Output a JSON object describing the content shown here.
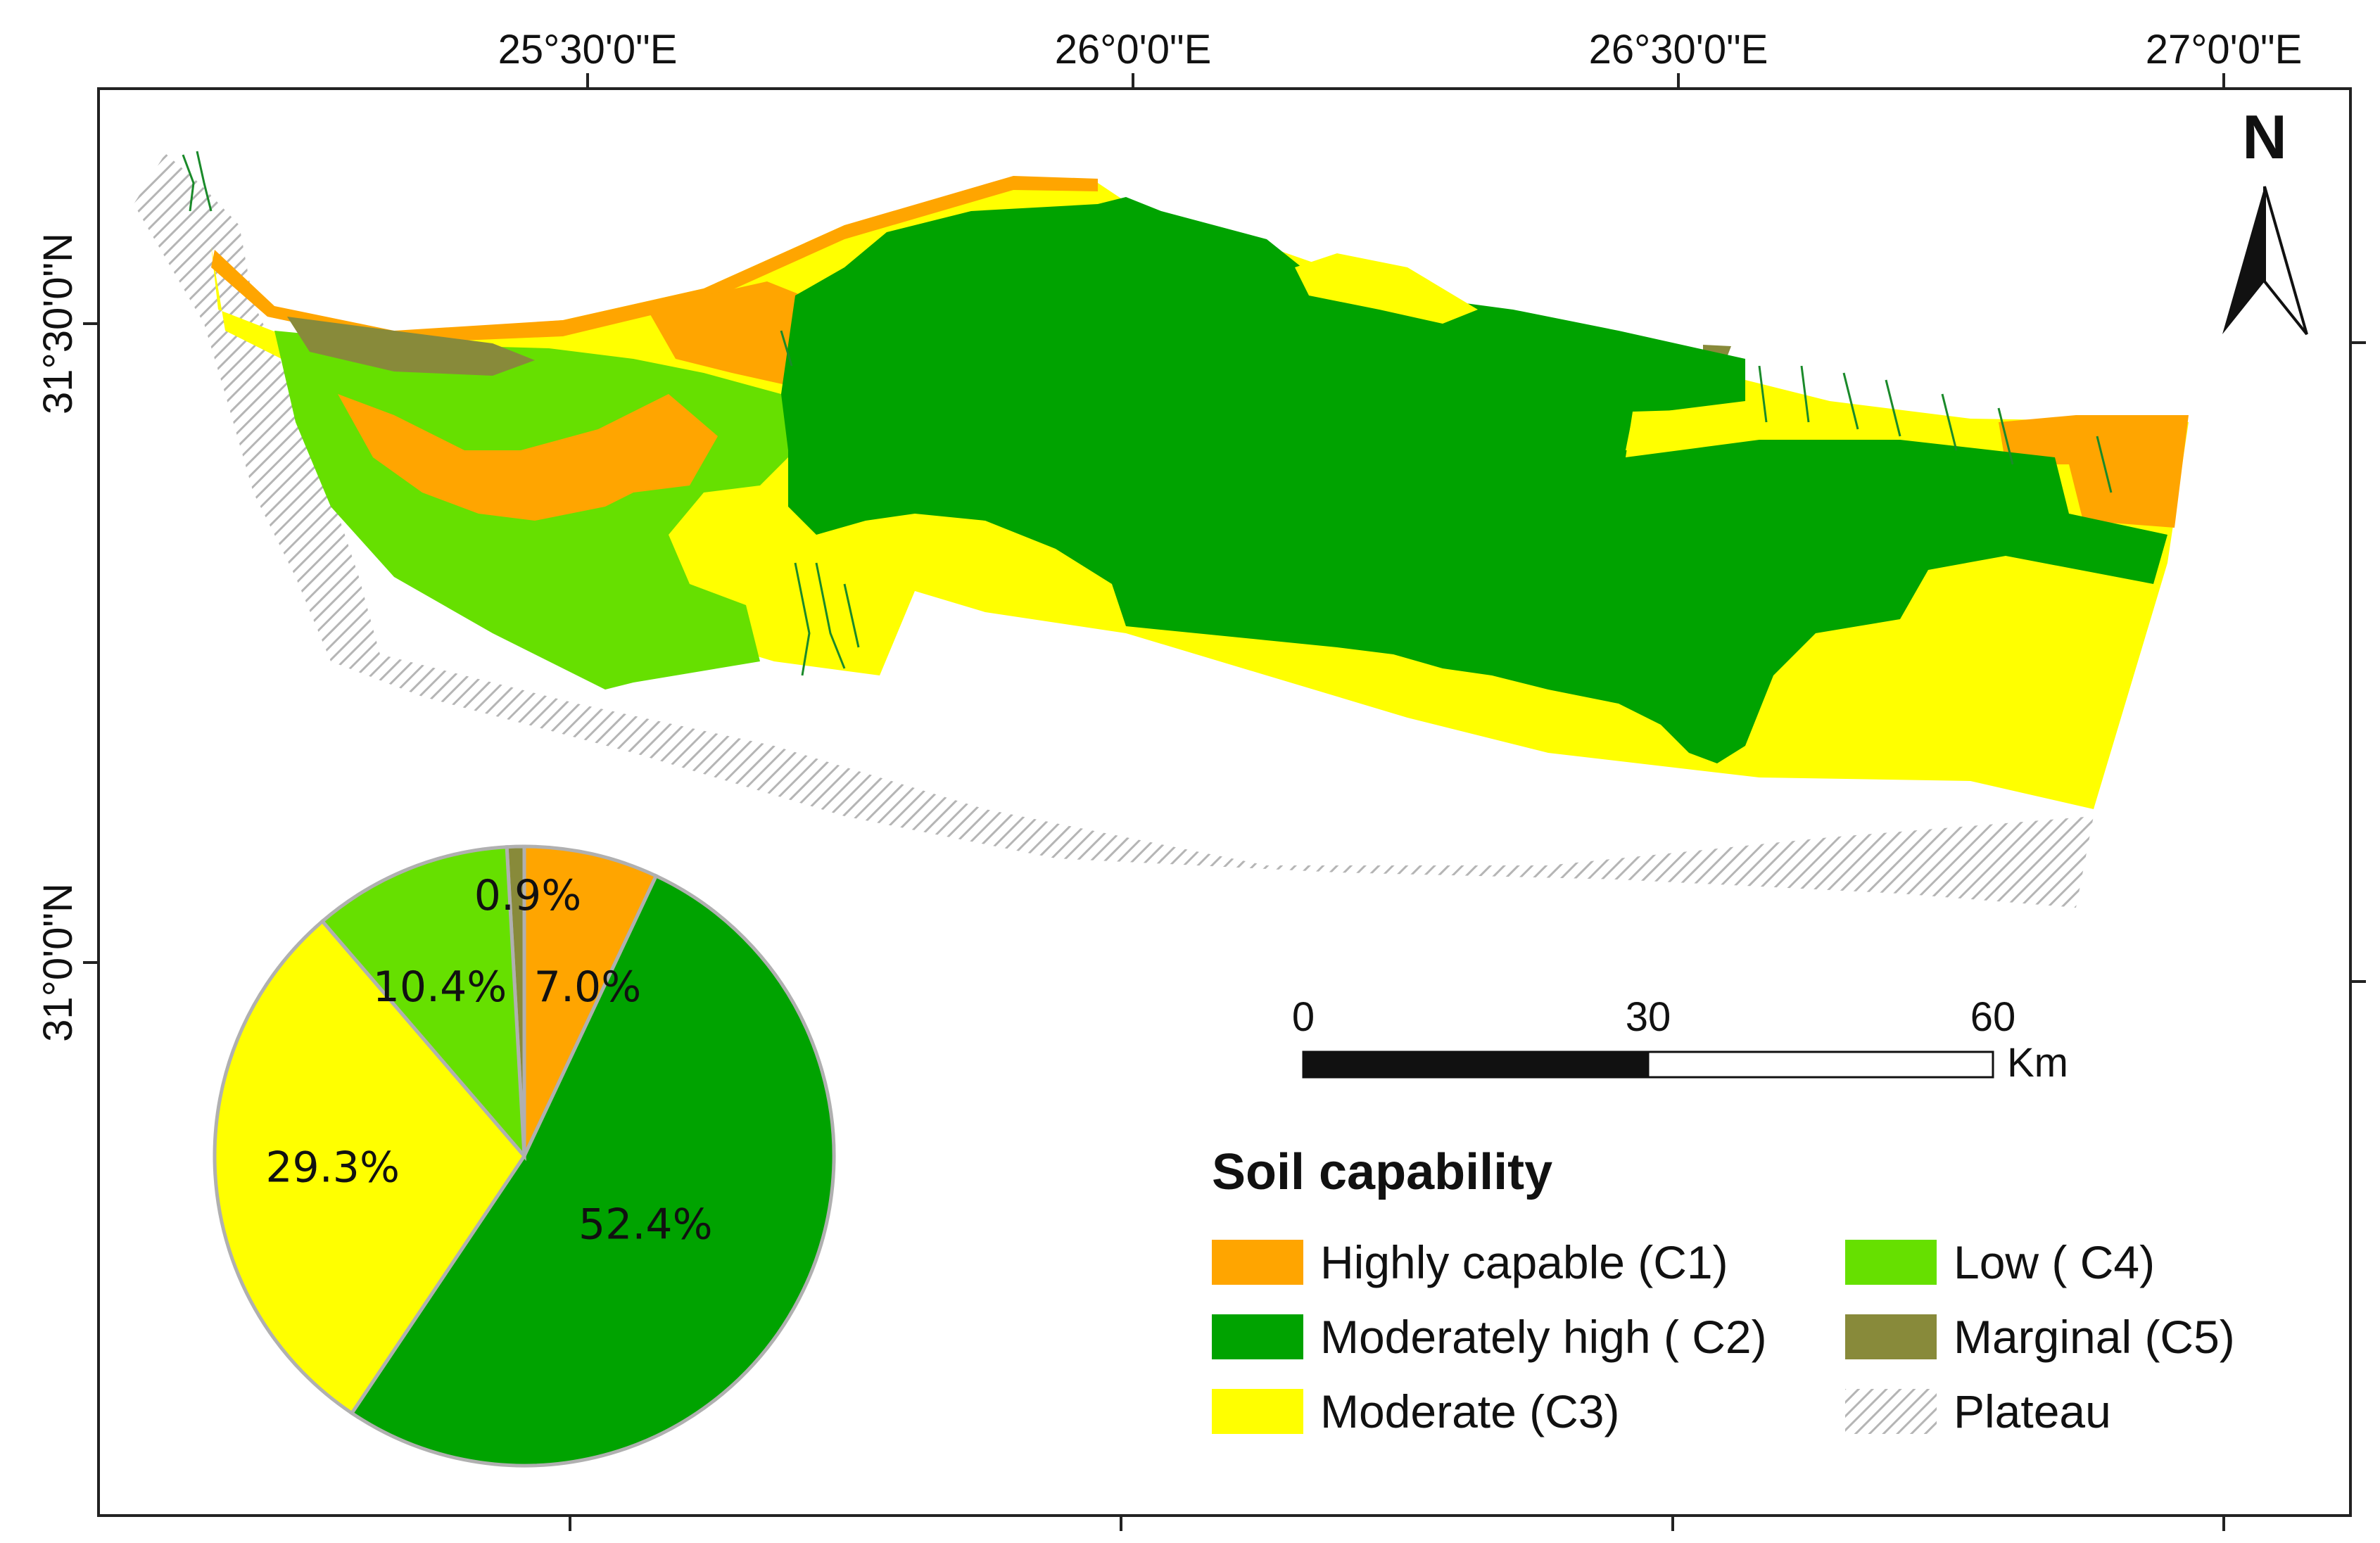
{
  "map": {
    "lon_labels": [
      "25°30'0\"E",
      "26°0'0\"E",
      "26°30'0\"E",
      "27°0'0\"E"
    ],
    "lat_labels": [
      "31°30'0\"N",
      "31°0'0\"N"
    ],
    "north_label": "N"
  },
  "scale_bar": {
    "ticks": [
      "0",
      "30",
      "60"
    ],
    "unit": "Km"
  },
  "legend": {
    "title": "Soil capability",
    "items": [
      {
        "label": "Highly capable (C1)",
        "color": "#ffa500"
      },
      {
        "label": "Moderately high ( C2)",
        "color": "#00a300"
      },
      {
        "label": "Moderate (C3)",
        "color": "#ffff00"
      },
      {
        "label": "Low ( C4)",
        "color": "#66e000"
      },
      {
        "label": "Marginal (C5)",
        "color": "#888a3a"
      },
      {
        "label": "Plateau",
        "color": "#cccccc"
      }
    ]
  },
  "chart_data": {
    "type": "pie",
    "title": "Soil capability",
    "categories": [
      "Highly capable (C1)",
      "Moderately high ( C2)",
      "Moderate (C3)",
      "Low ( C4)",
      "Marginal (C5)"
    ],
    "values": [
      7.0,
      52.4,
      29.3,
      10.4,
      0.9
    ],
    "labels": [
      "7.0%",
      "52.4%",
      "29.3%",
      "10.4%",
      "0.9%"
    ],
    "colors": [
      "#ffa500",
      "#00a300",
      "#ffff00",
      "#66e000",
      "#888a3a"
    ]
  }
}
